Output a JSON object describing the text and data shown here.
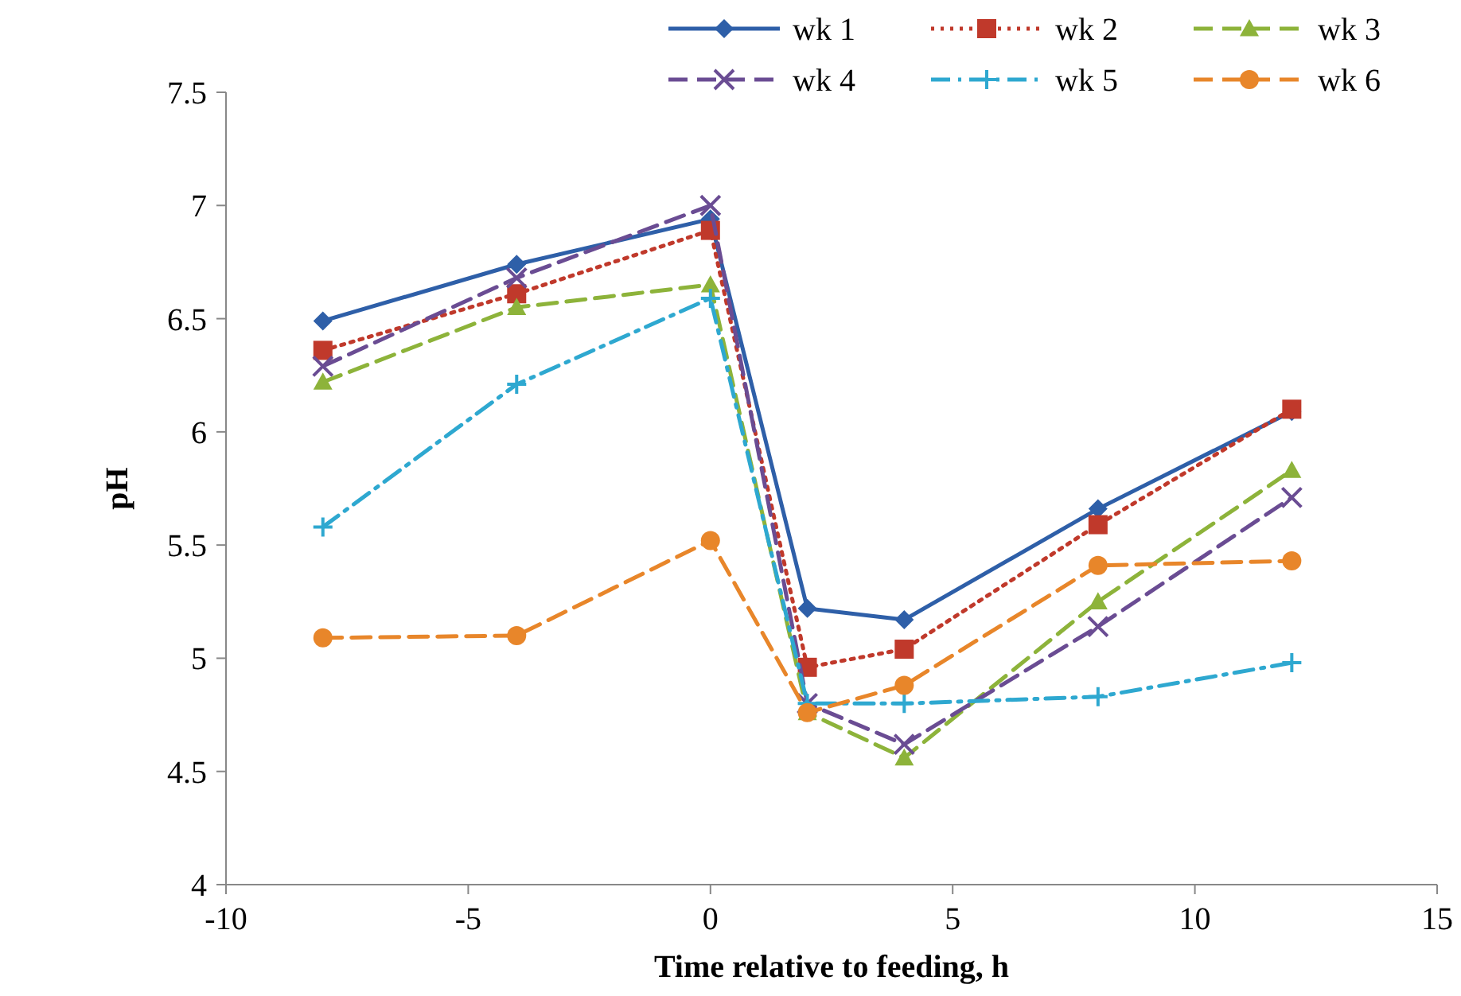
{
  "chart_data": {
    "type": "line",
    "xlabel": "Time relative to feeding, h",
    "ylabel": "pH",
    "x": [
      -8,
      -4,
      0,
      2,
      4,
      8,
      12
    ],
    "xlim": [
      -10,
      15
    ],
    "xticks": [
      -10,
      -5,
      0,
      5,
      10,
      15
    ],
    "ylim": [
      4,
      7.5
    ],
    "yticks": [
      4,
      4.5,
      5,
      5.5,
      6,
      6.5,
      7,
      7.5
    ],
    "grid": false,
    "legend": "top right",
    "series": [
      {
        "name": "wk 1",
        "color": "#2e5fa8",
        "marker": "diamond",
        "line_style": "solid",
        "values": [
          6.49,
          6.74,
          6.94,
          5.22,
          5.17,
          5.66,
          6.09
        ]
      },
      {
        "name": "wk 2",
        "color": "#c0392b",
        "marker": "square",
        "line_style": "dotted",
        "values": [
          6.36,
          6.61,
          6.89,
          4.96,
          5.04,
          5.59,
          6.1
        ]
      },
      {
        "name": "wk 3",
        "color": "#8db33a",
        "marker": "triangle",
        "line_style": "dashed",
        "values": [
          6.22,
          6.55,
          6.65,
          4.76,
          4.56,
          5.25,
          5.83
        ]
      },
      {
        "name": "wk 4",
        "color": "#6a4c93",
        "marker": "cross",
        "line_style": "dashed",
        "values": [
          6.29,
          6.68,
          7.0,
          4.8,
          4.62,
          5.14,
          5.71
        ]
      },
      {
        "name": "wk 5",
        "color": "#2ea8d0",
        "marker": "plus",
        "line_style": "dashdot",
        "values": [
          5.58,
          6.21,
          6.59,
          4.8,
          4.8,
          4.83,
          4.98
        ]
      },
      {
        "name": "wk 6",
        "color": "#e8862a",
        "marker": "circle",
        "line_style": "dashed",
        "values": [
          5.09,
          5.1,
          5.52,
          4.76,
          4.88,
          5.41,
          5.43
        ]
      }
    ]
  }
}
